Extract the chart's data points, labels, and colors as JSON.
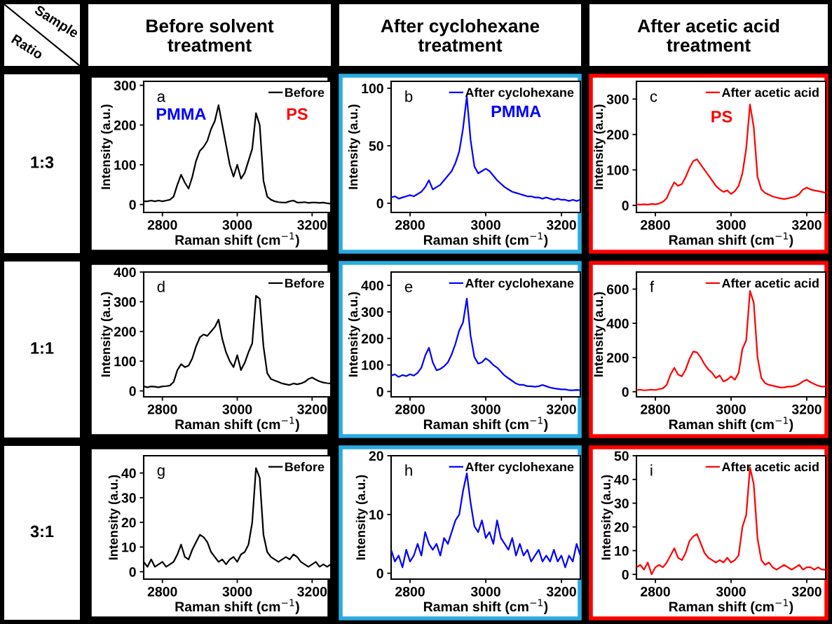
{
  "chart_data": [
    {
      "type": "other",
      "annotations": [
        "Sample",
        "Ratio",
        "Before solvent\ntreatment",
        "After cyclohexane\ntreatment",
        "After acetic acid\ntreatment",
        "1:3",
        "1:1",
        "3:1"
      ]
    },
    {
      "type": "line",
      "xlabel": "Raman shift (cm$^{−1}$)",
      "ylabel": "Intensity (a.u.)",
      "xlim": [
        2750,
        3250
      ],
      "xticks": [
        2800,
        3000,
        3200
      ],
      "ylim": [
        -20,
        310
      ],
      "yticks": [
        0,
        100,
        200,
        300
      ],
      "legend": "top right",
      "grid": false,
      "annotations": [
        "a",
        "PMMA",
        "PS"
      ],
      "x": [
        2750,
        2760,
        2770,
        2780,
        2790,
        2800,
        2810,
        2820,
        2830,
        2840,
        2850,
        2860,
        2870,
        2880,
        2890,
        2900,
        2910,
        2920,
        2930,
        2940,
        2950,
        2960,
        2970,
        2980,
        2990,
        3000,
        3010,
        3020,
        3030,
        3040,
        3050,
        3060,
        3070,
        3080,
        3090,
        3100,
        3110,
        3120,
        3130,
        3140,
        3150,
        3160,
        3170,
        3180,
        3190,
        3200,
        3210,
        3220,
        3230,
        3240,
        3250
      ],
      "series": [
        {
          "name": "Before",
          "color": "#000000",
          "values": [
            8,
            8,
            10,
            8,
            10,
            8,
            10,
            12,
            20,
            50,
            75,
            55,
            40,
            70,
            110,
            135,
            145,
            160,
            190,
            210,
            250,
            200,
            150,
            100,
            70,
            100,
            65,
            80,
            110,
            140,
            230,
            200,
            60,
            20,
            12,
            8,
            6,
            5,
            5,
            8,
            10,
            5,
            5,
            6,
            4,
            5,
            5,
            4,
            5,
            3,
            2
          ]
        }
      ]
    },
    {
      "type": "line",
      "xlabel": "Raman shift (cm$^{−1}$)",
      "ylabel": "Intensity (a.u.)",
      "xlim": [
        2750,
        3250
      ],
      "xticks": [
        2800,
        3000,
        3200
      ],
      "ylim": [
        -8,
        106
      ],
      "yticks": [
        0,
        50,
        100
      ],
      "legend": "top right",
      "grid": false,
      "annotations": [
        "b",
        "PMMA"
      ],
      "x": [
        2750,
        2760,
        2770,
        2780,
        2790,
        2800,
        2810,
        2820,
        2830,
        2840,
        2850,
        2860,
        2870,
        2880,
        2890,
        2900,
        2910,
        2920,
        2930,
        2940,
        2950,
        2960,
        2970,
        2980,
        2990,
        3000,
        3010,
        3020,
        3030,
        3040,
        3050,
        3060,
        3070,
        3080,
        3090,
        3100,
        3110,
        3120,
        3130,
        3140,
        3150,
        3160,
        3170,
        3180,
        3190,
        3200,
        3210,
        3220,
        3230,
        3240,
        3250
      ],
      "series": [
        {
          "name": "After cyclohexane",
          "color": "#0000ff",
          "values": [
            5,
            6,
            4,
            5,
            6,
            7,
            6,
            8,
            10,
            14,
            20,
            12,
            14,
            16,
            20,
            24,
            28,
            35,
            45,
            65,
            93,
            55,
            32,
            26,
            28,
            30,
            28,
            24,
            20,
            17,
            14,
            12,
            10,
            9,
            8,
            7,
            6,
            6,
            5,
            5,
            4,
            5,
            4,
            3,
            4,
            3,
            3,
            2,
            3,
            2,
            3
          ]
        }
      ]
    },
    {
      "type": "line",
      "xlabel": "Raman shift (cm$^{−1}$)",
      "ylabel": "Intensity (a.u.)",
      "xlim": [
        2750,
        3250
      ],
      "xticks": [
        2800,
        3000,
        3200
      ],
      "ylim": [
        -20,
        350
      ],
      "yticks": [
        0,
        100,
        200,
        300
      ],
      "legend": "top right",
      "grid": false,
      "annotations": [
        "c",
        "PS"
      ],
      "x": [
        2750,
        2760,
        2770,
        2780,
        2790,
        2800,
        2810,
        2820,
        2830,
        2840,
        2850,
        2860,
        2870,
        2880,
        2890,
        2900,
        2910,
        2920,
        2930,
        2940,
        2950,
        2960,
        2970,
        2980,
        2990,
        3000,
        3010,
        3020,
        3030,
        3040,
        3050,
        3060,
        3070,
        3080,
        3090,
        3100,
        3110,
        3120,
        3130,
        3140,
        3150,
        3160,
        3170,
        3180,
        3190,
        3200,
        3210,
        3220,
        3230,
        3240,
        3250
      ],
      "series": [
        {
          "name": "After acetic acid",
          "color": "#ff0000",
          "values": [
            3,
            2,
            3,
            2,
            4,
            3,
            5,
            10,
            20,
            45,
            65,
            55,
            60,
            80,
            105,
            125,
            130,
            115,
            100,
            85,
            70,
            55,
            45,
            38,
            42,
            32,
            40,
            55,
            90,
            160,
            285,
            220,
            80,
            45,
            35,
            30,
            25,
            22,
            20,
            18,
            20,
            22,
            25,
            32,
            45,
            50,
            45,
            42,
            40,
            38,
            35
          ]
        }
      ]
    },
    {
      "type": "line",
      "xlabel": "Raman shift (cm$^{−1}$)",
      "ylabel": "Intensity (a.u.)",
      "xlim": [
        2750,
        3250
      ],
      "xticks": [
        2800,
        3000,
        3200
      ],
      "ylim": [
        -20,
        400
      ],
      "yticks": [
        0,
        100,
        200,
        300,
        400
      ],
      "legend": "top right",
      "grid": false,
      "annotations": [
        "d"
      ],
      "x": [
        2750,
        2760,
        2770,
        2780,
        2790,
        2800,
        2810,
        2820,
        2830,
        2840,
        2850,
        2860,
        2870,
        2880,
        2890,
        2900,
        2910,
        2920,
        2930,
        2940,
        2950,
        2960,
        2970,
        2980,
        2990,
        3000,
        3010,
        3020,
        3030,
        3040,
        3050,
        3060,
        3070,
        3080,
        3090,
        3100,
        3110,
        3120,
        3130,
        3140,
        3150,
        3160,
        3170,
        3180,
        3190,
        3200,
        3210,
        3220,
        3230,
        3240,
        3250
      ],
      "series": [
        {
          "name": "Before",
          "color": "#000000",
          "values": [
            15,
            12,
            15,
            14,
            12,
            15,
            16,
            18,
            30,
            70,
            90,
            80,
            85,
            110,
            150,
            180,
            190,
            185,
            200,
            215,
            240,
            175,
            130,
            100,
            80,
            120,
            70,
            95,
            130,
            160,
            320,
            310,
            150,
            60,
            40,
            35,
            30,
            25,
            22,
            20,
            25,
            22,
            25,
            30,
            40,
            45,
            38,
            32,
            28,
            26,
            25
          ]
        }
      ]
    },
    {
      "type": "line",
      "xlabel": "Raman shift (cm$^{−1}$)",
      "ylabel": "Intensity (a.u.)",
      "xlim": [
        2750,
        3250
      ],
      "xticks": [
        2800,
        3000,
        3200
      ],
      "ylim": [
        -20,
        450
      ],
      "yticks": [
        0,
        100,
        200,
        300,
        400
      ],
      "legend": "top right",
      "grid": false,
      "annotations": [
        "e"
      ],
      "x": [
        2750,
        2760,
        2770,
        2780,
        2790,
        2800,
        2810,
        2820,
        2830,
        2840,
        2850,
        2860,
        2870,
        2880,
        2890,
        2900,
        2910,
        2920,
        2930,
        2940,
        2950,
        2960,
        2970,
        2980,
        2990,
        3000,
        3010,
        3020,
        3030,
        3040,
        3050,
        3060,
        3070,
        3080,
        3090,
        3100,
        3110,
        3120,
        3130,
        3140,
        3150,
        3160,
        3170,
        3180,
        3190,
        3200,
        3210,
        3220,
        3230,
        3240,
        3250
      ],
      "series": [
        {
          "name": "After cyclohexane",
          "color": "#0000ff",
          "values": [
            60,
            65,
            55,
            62,
            58,
            65,
            60,
            70,
            90,
            135,
            165,
            110,
            80,
            85,
            95,
            110,
            140,
            180,
            230,
            260,
            350,
            210,
            130,
            105,
            110,
            125,
            115,
            100,
            90,
            75,
            60,
            50,
            40,
            30,
            25,
            25,
            20,
            20,
            18,
            20,
            25,
            20,
            15,
            12,
            10,
            8,
            8,
            5,
            5,
            6,
            5
          ]
        }
      ]
    },
    {
      "type": "line",
      "xlabel": "Raman shift (cm$^{−1}$)",
      "ylabel": "Intensity (a.u.)",
      "xlim": [
        2750,
        3250
      ],
      "xticks": [
        2800,
        3000,
        3200
      ],
      "ylim": [
        -30,
        700
      ],
      "yticks": [
        0,
        200,
        400,
        600
      ],
      "legend": "top right",
      "grid": false,
      "annotations": [
        "f"
      ],
      "x": [
        2750,
        2760,
        2770,
        2780,
        2790,
        2800,
        2810,
        2820,
        2830,
        2840,
        2850,
        2860,
        2870,
        2880,
        2890,
        2900,
        2910,
        2920,
        2930,
        2940,
        2950,
        2960,
        2970,
        2980,
        2990,
        3000,
        3010,
        3020,
        3030,
        3040,
        3050,
        3060,
        3070,
        3080,
        3090,
        3100,
        3110,
        3120,
        3130,
        3140,
        3150,
        3160,
        3170,
        3180,
        3190,
        3200,
        3210,
        3220,
        3230,
        3240,
        3250
      ],
      "series": [
        {
          "name": "After acetic acid",
          "color": "#ff0000",
          "values": [
            10,
            12,
            8,
            10,
            12,
            10,
            15,
            20,
            40,
            100,
            140,
            100,
            90,
            130,
            190,
            235,
            230,
            200,
            160,
            130,
            110,
            80,
            95,
            60,
            70,
            90,
            70,
            110,
            250,
            300,
            590,
            520,
            200,
            80,
            50,
            40,
            35,
            30,
            25,
            25,
            30,
            30,
            35,
            45,
            60,
            70,
            55,
            45,
            35,
            30,
            30
          ]
        }
      ]
    },
    {
      "type": "line",
      "xlabel": "Raman shift (cm$^{−1}$)",
      "ylabel": "Intensity (a.u.)",
      "xlim": [
        2750,
        3250
      ],
      "xticks": [
        2800,
        3000,
        3200
      ],
      "ylim": [
        -3,
        47
      ],
      "yticks": [
        0,
        10,
        20,
        30,
        40
      ],
      "legend": "top right",
      "grid": false,
      "annotations": [
        "g"
      ],
      "x": [
        2750,
        2760,
        2770,
        2780,
        2790,
        2800,
        2810,
        2820,
        2830,
        2840,
        2850,
        2860,
        2870,
        2880,
        2890,
        2900,
        2910,
        2920,
        2930,
        2940,
        2950,
        2960,
        2970,
        2980,
        2990,
        3000,
        3010,
        3020,
        3030,
        3040,
        3050,
        3060,
        3070,
        3080,
        3090,
        3100,
        3110,
        3120,
        3130,
        3140,
        3150,
        3160,
        3170,
        3180,
        3190,
        3200,
        3210,
        3220,
        3230,
        3240,
        3250
      ],
      "series": [
        {
          "name": "Before",
          "color": "#000000",
          "values": [
            4,
            2,
            5,
            2,
            3,
            4,
            2,
            3,
            4,
            7,
            11,
            6,
            5,
            9,
            12,
            15,
            14,
            12,
            8,
            6,
            4,
            5,
            3,
            5,
            6,
            4,
            7,
            8,
            11,
            20,
            42,
            38,
            15,
            8,
            6,
            5,
            4,
            5,
            6,
            5,
            7,
            6,
            4,
            3,
            2,
            3,
            4,
            2,
            3,
            2,
            3
          ]
        }
      ]
    },
    {
      "type": "line",
      "xlabel": "Raman shift (cm$^{−1}$)",
      "ylabel": "Intensity (a.u.)",
      "xlim": [
        2750,
        3250
      ],
      "xticks": [
        2800,
        3000,
        3200
      ],
      "ylim": [
        -1,
        20
      ],
      "yticks": [
        0,
        10,
        20
      ],
      "legend": "top right",
      "grid": false,
      "annotations": [
        "h"
      ],
      "x": [
        2750,
        2760,
        2770,
        2780,
        2790,
        2800,
        2810,
        2820,
        2830,
        2840,
        2850,
        2860,
        2870,
        2880,
        2890,
        2900,
        2910,
        2920,
        2930,
        2940,
        2950,
        2960,
        2970,
        2980,
        2990,
        3000,
        3010,
        3020,
        3030,
        3040,
        3050,
        3060,
        3070,
        3080,
        3090,
        3100,
        3110,
        3120,
        3130,
        3140,
        3150,
        3160,
        3170,
        3180,
        3190,
        3200,
        3210,
        3220,
        3230,
        3240,
        3250
      ],
      "series": [
        {
          "name": "After cyclohexane",
          "color": "#0000ff",
          "values": [
            4,
            2,
            3,
            1,
            4,
            2,
            3,
            5,
            3,
            7,
            5,
            4,
            5,
            3,
            6,
            5,
            7,
            9,
            10,
            14,
            17,
            12,
            8,
            7,
            9,
            6,
            7,
            5,
            9,
            6,
            5,
            4,
            6,
            3,
            5,
            3,
            4,
            2,
            3,
            4,
            2,
            3,
            2,
            4,
            2,
            3,
            1,
            3,
            2,
            5,
            3
          ]
        }
      ]
    },
    {
      "type": "line",
      "xlabel": "Raman shift (cm$^{−1}$)",
      "ylabel": "Intensity (a.u.)",
      "xlim": [
        2750,
        3250
      ],
      "xticks": [
        2800,
        3000,
        3200
      ],
      "ylim": [
        -2,
        50
      ],
      "yticks": [
        0,
        10,
        20,
        30,
        40,
        50
      ],
      "legend": "top right",
      "grid": false,
      "annotations": [
        "i"
      ],
      "x": [
        2750,
        2760,
        2770,
        2780,
        2790,
        2800,
        2810,
        2820,
        2830,
        2840,
        2850,
        2860,
        2870,
        2880,
        2890,
        2900,
        2910,
        2920,
        2930,
        2940,
        2950,
        2960,
        2970,
        2980,
        2990,
        3000,
        3010,
        3020,
        3030,
        3040,
        3050,
        3060,
        3070,
        3080,
        3090,
        3100,
        3110,
        3120,
        3130,
        3140,
        3150,
        3160,
        3170,
        3180,
        3190,
        3200,
        3210,
        3220,
        3230,
        3240,
        3250
      ],
      "series": [
        {
          "name": "After acetic acid",
          "color": "#ff0000",
          "values": [
            3,
            4,
            2,
            5,
            0,
            3,
            4,
            3,
            5,
            8,
            11,
            7,
            6,
            9,
            14,
            16,
            17,
            13,
            9,
            7,
            6,
            5,
            6,
            5,
            7,
            5,
            6,
            8,
            20,
            25,
            45,
            38,
            15,
            6,
            4,
            5,
            3,
            2,
            3,
            4,
            3,
            2,
            3,
            4,
            2,
            3,
            3,
            2,
            3,
            2,
            2
          ]
        }
      ]
    }
  ]
}
